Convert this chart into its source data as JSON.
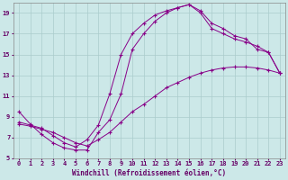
{
  "bg_color": "#cce8e8",
  "grid_color": "#aacccc",
  "line_color": "#880088",
  "xlabel": "Windchill (Refroidissement éolien,°C)",
  "xlim": [
    -0.5,
    23.5
  ],
  "ylim": [
    5,
    20
  ],
  "xtick_vals": [
    0,
    1,
    2,
    3,
    4,
    5,
    6,
    7,
    8,
    9,
    10,
    11,
    12,
    13,
    14,
    15,
    16,
    17,
    18,
    19,
    20,
    21,
    22,
    23
  ],
  "ytick_vals": [
    5,
    7,
    9,
    11,
    13,
    15,
    17,
    19
  ],
  "line1_x": [
    0,
    1,
    2,
    3,
    4,
    5,
    6,
    7,
    8,
    9,
    10,
    11,
    12,
    13,
    14,
    15,
    16,
    17,
    18,
    19,
    20,
    21,
    22,
    23
  ],
  "line1_y": [
    9.5,
    8.3,
    7.3,
    6.5,
    6.0,
    5.8,
    5.8,
    7.5,
    8.7,
    11.2,
    15.5,
    17.0,
    18.2,
    19.0,
    19.5,
    19.8,
    19.2,
    18.0,
    17.5,
    16.8,
    16.5,
    15.5,
    15.2,
    13.2
  ],
  "line2_x": [
    0,
    1,
    2,
    3,
    4,
    5,
    6,
    7,
    8,
    9,
    10,
    11,
    12,
    13,
    14,
    15,
    16,
    17,
    18,
    19,
    20,
    21,
    22,
    23
  ],
  "line2_y": [
    8.3,
    8.1,
    7.8,
    7.5,
    7.0,
    6.5,
    6.2,
    6.8,
    7.5,
    8.5,
    9.5,
    10.2,
    11.0,
    11.8,
    12.3,
    12.8,
    13.2,
    13.5,
    13.7,
    13.8,
    13.8,
    13.7,
    13.5,
    13.2
  ],
  "line3_x": [
    0,
    1,
    2,
    3,
    4,
    5,
    6,
    7,
    8,
    9,
    10,
    11,
    12,
    13,
    14,
    15,
    16,
    17,
    18,
    19,
    20,
    21,
    22,
    23
  ],
  "line3_y": [
    8.5,
    8.2,
    7.9,
    7.2,
    6.5,
    6.1,
    6.8,
    8.2,
    11.2,
    15.0,
    17.0,
    18.0,
    18.8,
    19.2,
    19.5,
    19.8,
    19.0,
    17.5,
    17.0,
    16.5,
    16.2,
    15.8,
    15.2,
    13.2
  ]
}
